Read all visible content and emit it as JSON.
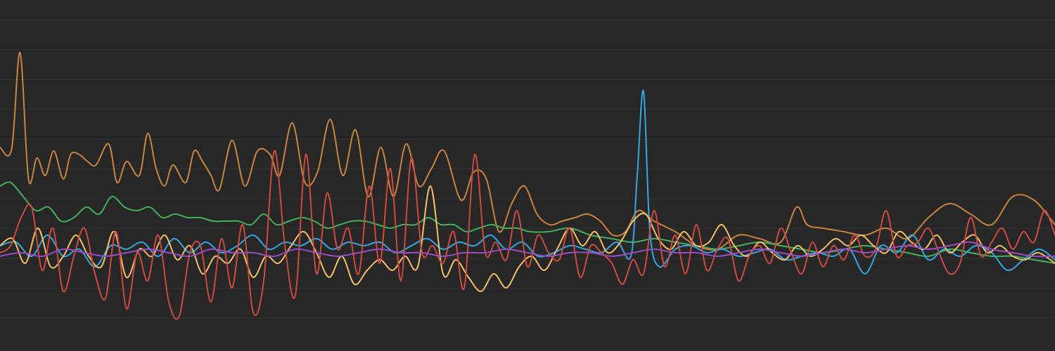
{
  "colors": {
    "background": "#272727",
    "grid": "#333333"
  },
  "chart_data": {
    "type": "line",
    "title": "",
    "xlabel": "",
    "ylabel": "",
    "grid": true,
    "legend": "none",
    "xlim": [
      0,
      100
    ],
    "ylim": [
      0,
      100
    ],
    "y_gridlines": [
      9.5,
      18,
      26.5,
      35,
      43.5,
      52,
      60.5,
      69,
      77.5,
      86,
      94.5
    ],
    "series": [
      {
        "name": "orange",
        "color": "#C9843F",
        "x": [
          0,
          1.1,
          1.9,
          2.7,
          3.5,
          4.3,
          5.1,
          6.0,
          6.7,
          7.5,
          8.3,
          9.1,
          10.3,
          11.1,
          12.0,
          13.2,
          14.0,
          14.8,
          15.6,
          16.4,
          17.6,
          18.4,
          19.2,
          20.0,
          20.8,
          22.0,
          23.2,
          24.4,
          25.6,
          26.5,
          27.7,
          28.9,
          30.1,
          31.3,
          32.5,
          33.7,
          34.9,
          36.1,
          37.3,
          38.5,
          39.7,
          40.9,
          42.1,
          43.7,
          44.9,
          46.1,
          47.3,
          48.5,
          49.7,
          50.9,
          52.1,
          53.3,
          54.5,
          55.7,
          56.9,
          58.1,
          59.3,
          60.5,
          62.0,
          64.0,
          66.0,
          68.0,
          70.0,
          72.0,
          74.0,
          75.5,
          76.5,
          78.0,
          80.0,
          82.0,
          84.0,
          86.0,
          88.0,
          90.0,
          92.0,
          94.0,
          96.0,
          98.0,
          100
        ],
        "values": [
          58,
          57.5,
          85,
          49,
          55,
          50,
          57,
          49,
          56,
          56,
          54,
          53,
          59,
          48,
          54,
          50,
          62,
          52,
          47,
          53,
          48,
          57,
          54,
          50,
          46,
          60,
          47,
          57,
          56,
          50,
          65,
          48,
          51,
          66,
          50,
          63,
          44,
          58,
          44,
          59,
          47,
          52,
          57,
          43,
          51,
          49,
          34,
          42,
          47,
          39,
          36,
          37,
          38,
          39,
          37,
          33,
          34,
          40,
          37,
          34,
          30,
          29,
          33,
          32,
          31,
          41,
          36,
          35,
          34,
          33,
          35,
          32,
          38,
          42,
          39,
          36,
          44,
          43,
          36
        ]
      },
      {
        "name": "green",
        "color": "#43B05C",
        "x": [
          0,
          1.0,
          2.2,
          3.4,
          4.6,
          5.8,
          7.0,
          8.2,
          9.4,
          10.6,
          11.8,
          13.0,
          14.2,
          15.4,
          16.6,
          17.8,
          19.0,
          20.2,
          21.4,
          22.6,
          23.8,
          25.0,
          26.2,
          27.4,
          28.6,
          29.8,
          31.0,
          32.2,
          33.4,
          34.6,
          35.8,
          37.0,
          38.2,
          39.4,
          40.6,
          41.8,
          43.0,
          44.2,
          45.4,
          46.6,
          47.8,
          49.0,
          50.2,
          52.0,
          54.0,
          56.0,
          58.0,
          60.0,
          62.0,
          64.0,
          66.0,
          68.0,
          70.0,
          72.0,
          74.0,
          76.0,
          78.0,
          80.0,
          82.0,
          84.0,
          86.0,
          88.0,
          90.0,
          92.0,
          94.0,
          96.0,
          98.0,
          100
        ],
        "values": [
          47,
          48,
          44,
          40,
          41,
          37,
          38,
          41,
          39,
          44,
          41,
          40,
          41,
          38,
          39,
          38,
          38,
          37,
          37,
          37,
          36,
          39,
          36,
          37,
          38,
          37,
          35,
          36,
          37,
          37,
          36,
          35,
          36,
          36,
          38,
          36,
          36,
          34,
          35,
          36,
          35,
          35,
          34,
          34,
          35,
          33,
          32,
          31,
          32,
          31,
          30,
          29,
          30,
          31,
          30,
          29,
          28,
          29,
          30,
          29,
          28,
          27,
          29,
          28,
          27,
          27,
          26,
          25
        ]
      },
      {
        "name": "blue",
        "color": "#33A7E3",
        "x": [
          0,
          1.5,
          3.0,
          4.5,
          6.0,
          7.5,
          9.0,
          10.5,
          12.0,
          13.5,
          15.0,
          16.5,
          18.0,
          19.5,
          21.0,
          22.5,
          24.0,
          25.5,
          27.0,
          28.5,
          30.0,
          31.5,
          33.0,
          34.5,
          36.0,
          37.5,
          39.0,
          40.5,
          42.0,
          43.5,
          45.0,
          46.5,
          48.0,
          49.5,
          51.0,
          52.5,
          54.0,
          55.5,
          57.0,
          58.5,
          59.8,
          60.4,
          61.0,
          61.6,
          62.5,
          64.0,
          65.5,
          67.0,
          68.5,
          70.0,
          71.5,
          73.0,
          74.5,
          76.0,
          77.5,
          79.0,
          80.5,
          82.0,
          83.5,
          85.0,
          86.5,
          88.0,
          89.5,
          91.0,
          92.5,
          94.0,
          95.5,
          97.0,
          98.5,
          100
        ],
        "values": [
          30,
          31,
          27,
          33,
          27,
          29,
          24,
          30,
          29,
          31,
          27,
          32,
          28,
          31,
          28,
          30,
          33,
          29,
          31,
          30,
          32,
          29,
          31,
          30,
          31,
          28,
          30,
          32,
          29,
          31,
          30,
          33,
          29,
          31,
          27,
          28,
          30,
          29,
          28,
          31,
          27,
          50,
          74,
          34,
          24,
          29,
          30,
          28,
          29,
          27,
          28,
          29,
          26,
          27,
          28,
          27,
          29,
          22,
          30,
          28,
          33,
          26,
          29,
          27,
          30,
          28,
          23,
          26,
          29,
          26
        ]
      },
      {
        "name": "yellow",
        "color": "#F3BF67",
        "x": [
          0,
          1.2,
          2.4,
          3.6,
          4.8,
          6.0,
          7.2,
          8.4,
          9.6,
          10.8,
          12.0,
          13.2,
          14.4,
          15.6,
          16.8,
          18.0,
          19.2,
          20.4,
          21.6,
          22.8,
          24.0,
          25.2,
          26.4,
          27.6,
          28.8,
          30.0,
          31.2,
          32.4,
          33.6,
          34.8,
          36.0,
          37.2,
          38.4,
          39.6,
          40.8,
          42.0,
          43.2,
          44.4,
          45.6,
          46.8,
          48.0,
          49.2,
          50.4,
          51.6,
          52.8,
          54.0,
          55.2,
          56.4,
          57.6,
          58.8,
          60.0,
          61.2,
          62.4,
          63.6,
          64.8,
          66.0,
          67.2,
          68.4,
          69.6,
          70.8,
          72.0,
          73.2,
          74.4,
          75.6,
          76.8,
          78.0,
          79.2,
          80.4,
          81.6,
          82.8,
          84.0,
          85.2,
          86.4,
          87.6,
          88.8,
          90.0,
          91.2,
          92.4,
          93.6,
          94.8,
          96.0,
          97.2,
          98.4,
          100
        ],
        "values": [
          30,
          32,
          25,
          35,
          24,
          27,
          33,
          27,
          24,
          34,
          21,
          29,
          27,
          33,
          26,
          30,
          22,
          27,
          25,
          29,
          21,
          27,
          25,
          30,
          34,
          28,
          21,
          27,
          19,
          23,
          26,
          23,
          27,
          24,
          47,
          22,
          26,
          21,
          17,
          22,
          18,
          24,
          27,
          23,
          29,
          35,
          30,
          34,
          28,
          31,
          37,
          39,
          32,
          29,
          34,
          30,
          31,
          36,
          30,
          27,
          31,
          28,
          26,
          30,
          27,
          29,
          32,
          30,
          33,
          30,
          28,
          34,
          31,
          29,
          33,
          28,
          31,
          33,
          28,
          30,
          27,
          26,
          28,
          25
        ]
      },
      {
        "name": "red",
        "color": "#CD4A41",
        "x": [
          0,
          1.0,
          2.0,
          3.0,
          4.0,
          5.0,
          6.0,
          7.0,
          8.0,
          9.0,
          10.0,
          11.0,
          12.0,
          13.0,
          14.0,
          15.0,
          16.0,
          17.0,
          18.0,
          19.0,
          20.0,
          21.0,
          22.0,
          23.0,
          24.0,
          25.0,
          26.0,
          27.0,
          28.0,
          29.0,
          30.0,
          31.0,
          32.0,
          33.0,
          34.0,
          35.0,
          36.0,
          37.0,
          38.0,
          39.0,
          40.0,
          41.0,
          42.0,
          43.0,
          44.0,
          45.0,
          46.0,
          47.0,
          48.0,
          49.0,
          50.0,
          51.0,
          52.0,
          53.0,
          54.0,
          55.0,
          56.0,
          57.0,
          58.0,
          59.0,
          60.0,
          61.0,
          62.0,
          63.0,
          64.0,
          65.0,
          66.0,
          67.0,
          68.0,
          69.0,
          70.0,
          71.0,
          72.0,
          73.0,
          74.0,
          75.0,
          76.0,
          77.0,
          78.0,
          79.0,
          80.0,
          81.0,
          82.0,
          83.0,
          84.0,
          85.0,
          86.0,
          87.0,
          88.0,
          89.0,
          90.0,
          91.0,
          92.0,
          93.0,
          94.0,
          95.0,
          96.0,
          97.0,
          98.0,
          99.0,
          100
        ],
        "values": [
          28,
          30,
          38,
          41,
          23,
          35,
          17,
          27,
          35,
          22,
          15,
          34,
          12,
          28,
          20,
          33,
          14,
          10,
          28,
          30,
          14,
          32,
          18,
          36,
          11,
          20,
          57,
          30,
          16,
          56,
          22,
          45,
          29,
          35,
          22,
          47,
          25,
          52,
          20,
          55,
          28,
          30,
          25,
          34,
          18,
          56,
          28,
          31,
          26,
          40,
          24,
          33,
          28,
          26,
          35,
          21,
          30,
          28,
          25,
          19,
          26,
          22,
          40,
          24,
          33,
          22,
          36,
          23,
          29,
          32,
          20,
          27,
          30,
          25,
          35,
          28,
          22,
          31,
          24,
          30,
          26,
          33,
          27,
          29,
          40,
          27,
          30,
          31,
          35,
          28,
          22,
          25,
          38,
          27,
          31,
          35,
          29,
          34,
          31,
          40,
          33
        ]
      },
      {
        "name": "purple",
        "color": "#9B4CC0",
        "x": [
          0,
          2,
          4,
          6,
          8,
          10,
          12,
          14,
          16,
          18,
          20,
          22,
          24,
          26,
          28,
          30,
          32,
          34,
          36,
          38,
          40,
          42,
          44,
          46,
          48,
          50,
          52,
          54,
          56,
          58,
          60,
          62,
          64,
          66,
          68,
          70,
          72,
          74,
          76,
          78,
          80,
          82,
          84,
          86,
          88,
          90,
          92,
          94,
          96,
          98,
          100
        ],
        "values": [
          27,
          28,
          27,
          29,
          28,
          27,
          28,
          29,
          28,
          27,
          29,
          28,
          28,
          27,
          29,
          28,
          27,
          28,
          29,
          28,
          28,
          27,
          28,
          28,
          29,
          28,
          27,
          28,
          28,
          27,
          28,
          29,
          28,
          28,
          27,
          28,
          29,
          28,
          27,
          28,
          29,
          28,
          29,
          30,
          29,
          30,
          31,
          29,
          28,
          27,
          27
        ]
      }
    ]
  }
}
